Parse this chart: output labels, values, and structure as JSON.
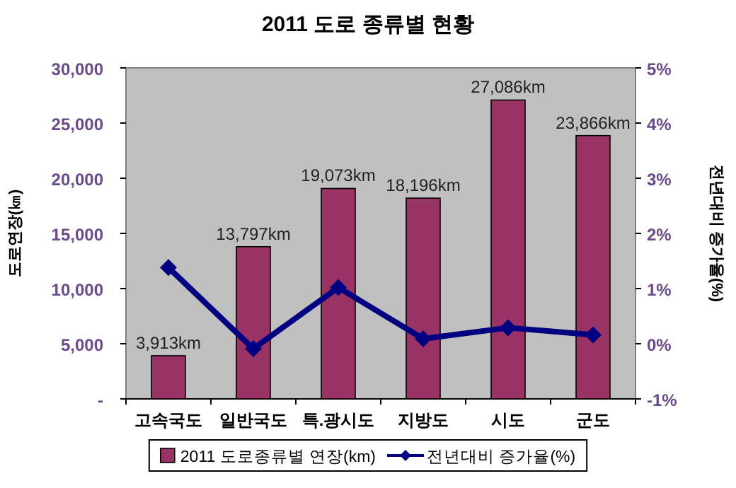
{
  "chart_data": {
    "type": "bar",
    "title": "2011 도로 종류별 현황",
    "ylabel": "도로연장(㎞)",
    "y2label": "전년대비 증가율(%)",
    "categories": [
      "고속국도",
      "일반국도",
      "특.광시도",
      "지방도",
      "시도",
      "군도"
    ],
    "series": [
      {
        "name": "2011 도로종류별 연장(km)",
        "color": "#993366",
        "values": [
          3913,
          13797,
          19073,
          18196,
          27086,
          23866
        ],
        "value_labels": [
          "3,913km",
          "13,797km",
          "19,073km",
          "18,196km",
          "27,086km",
          "23,866km"
        ]
      },
      {
        "name": "전년대비 증가율(%)",
        "type": "line",
        "axis": "y2",
        "color": "#000080",
        "marker": "diamond",
        "values": [
          1.38,
          -0.09,
          1.02,
          0.09,
          0.29,
          0.16
        ]
      }
    ],
    "ylim": [
      0,
      30000
    ],
    "yticks": [
      {
        "value": 0,
        "label": "-"
      },
      {
        "value": 5000,
        "label": "5,000"
      },
      {
        "value": 10000,
        "label": "10,000"
      },
      {
        "value": 15000,
        "label": "15,000"
      },
      {
        "value": 20000,
        "label": "20,000"
      },
      {
        "value": 25000,
        "label": "25,000"
      },
      {
        "value": 30000,
        "label": "30,000"
      }
    ],
    "y2lim": [
      -1,
      5
    ],
    "y2ticks": [
      {
        "value": -1,
        "label": "-1%"
      },
      {
        "value": 0,
        "label": "0%"
      },
      {
        "value": 1,
        "label": "1%"
      },
      {
        "value": 2,
        "label": "2%"
      },
      {
        "value": 3,
        "label": "3%"
      },
      {
        "value": 4,
        "label": "4%"
      },
      {
        "value": 5,
        "label": "5%"
      }
    ],
    "legend": "bottom"
  }
}
